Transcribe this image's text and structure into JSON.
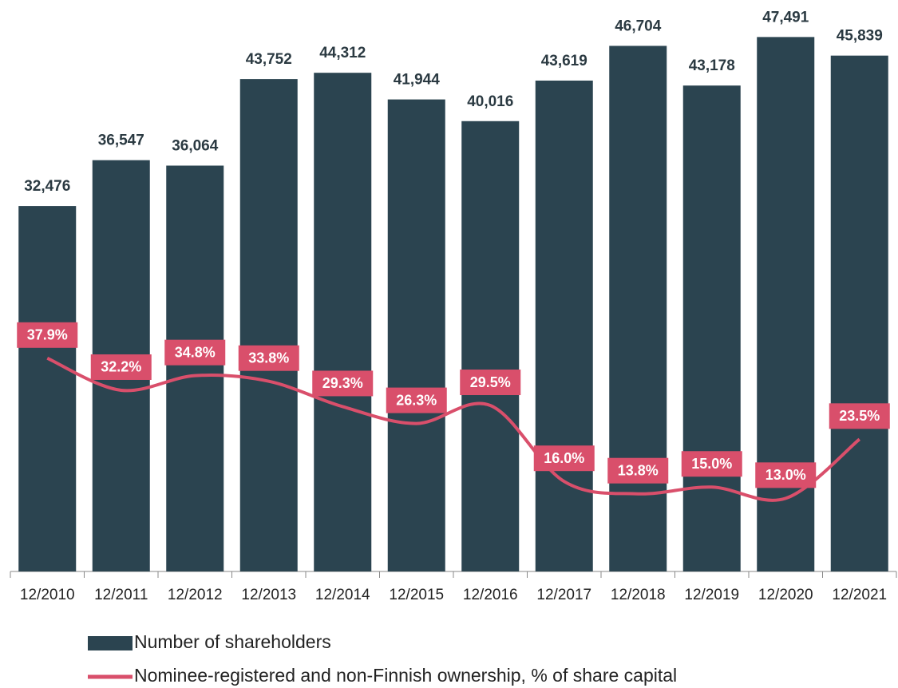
{
  "chart_data": {
    "type": "bar",
    "categories": [
      "12/2010",
      "12/2011",
      "12/2012",
      "12/2013",
      "12/2014",
      "12/2015",
      "12/2016",
      "12/2017",
      "12/2018",
      "12/2019",
      "12/2020",
      "12/2021"
    ],
    "series": [
      {
        "name": "Number of shareholders",
        "type": "bar",
        "color": "#2b4450",
        "values": [
          32476,
          36547,
          36064,
          43752,
          44312,
          41944,
          40016,
          43619,
          46704,
          43178,
          47491,
          45839
        ],
        "value_labels": [
          "32,476",
          "36,547",
          "36,064",
          "43,752",
          "44,312",
          "41,944",
          "40,016",
          "43,619",
          "46,704",
          "43,178",
          "47,491",
          "45,839"
        ]
      },
      {
        "name": "Nominee-registered and non-Finnish ownership, % of share capital",
        "type": "line",
        "axis": "y2",
        "color": "#d94f6b",
        "values": [
          37.9,
          32.2,
          34.8,
          33.8,
          29.3,
          26.3,
          29.5,
          16.0,
          13.8,
          15.0,
          13.0,
          23.5
        ],
        "value_labels": [
          "37.9%",
          "32.2%",
          "34.8%",
          "33.8%",
          "29.3%",
          "26.3%",
          "29.5%",
          "16.0%",
          "13.8%",
          "15.0%",
          "13.0%",
          "23.5%"
        ]
      }
    ],
    "ylim": [
      0,
      50000
    ],
    "y2lim": [
      0,
      100
    ]
  }
}
